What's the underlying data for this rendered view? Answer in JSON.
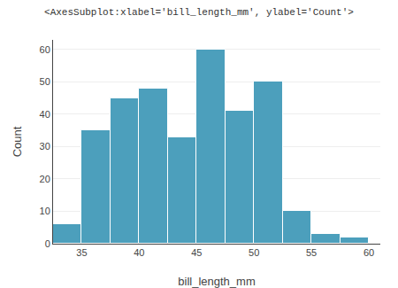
{
  "chart_data": {
    "type": "histogram",
    "title": "<AxesSubplot:xlabel='bill_length_mm', ylabel='Count'>",
    "xlabel": "bill_length_mm",
    "ylabel": "Count",
    "bins": [
      32.5,
      35.0,
      37.5,
      40.0,
      42.5,
      45.0,
      47.5,
      50.0,
      52.5,
      55.0,
      57.5,
      60.0
    ],
    "values": [
      6,
      35,
      45,
      48,
      33,
      60,
      41,
      50,
      10,
      3,
      2
    ],
    "color": "#4c9fbc",
    "xlim": [
      32.5,
      61.0
    ],
    "ylim": [
      0,
      63
    ],
    "xticks": [
      35,
      40,
      45,
      50,
      55,
      60
    ],
    "yticks": [
      0,
      10,
      20,
      30,
      40,
      50,
      60
    ],
    "grid": true
  }
}
